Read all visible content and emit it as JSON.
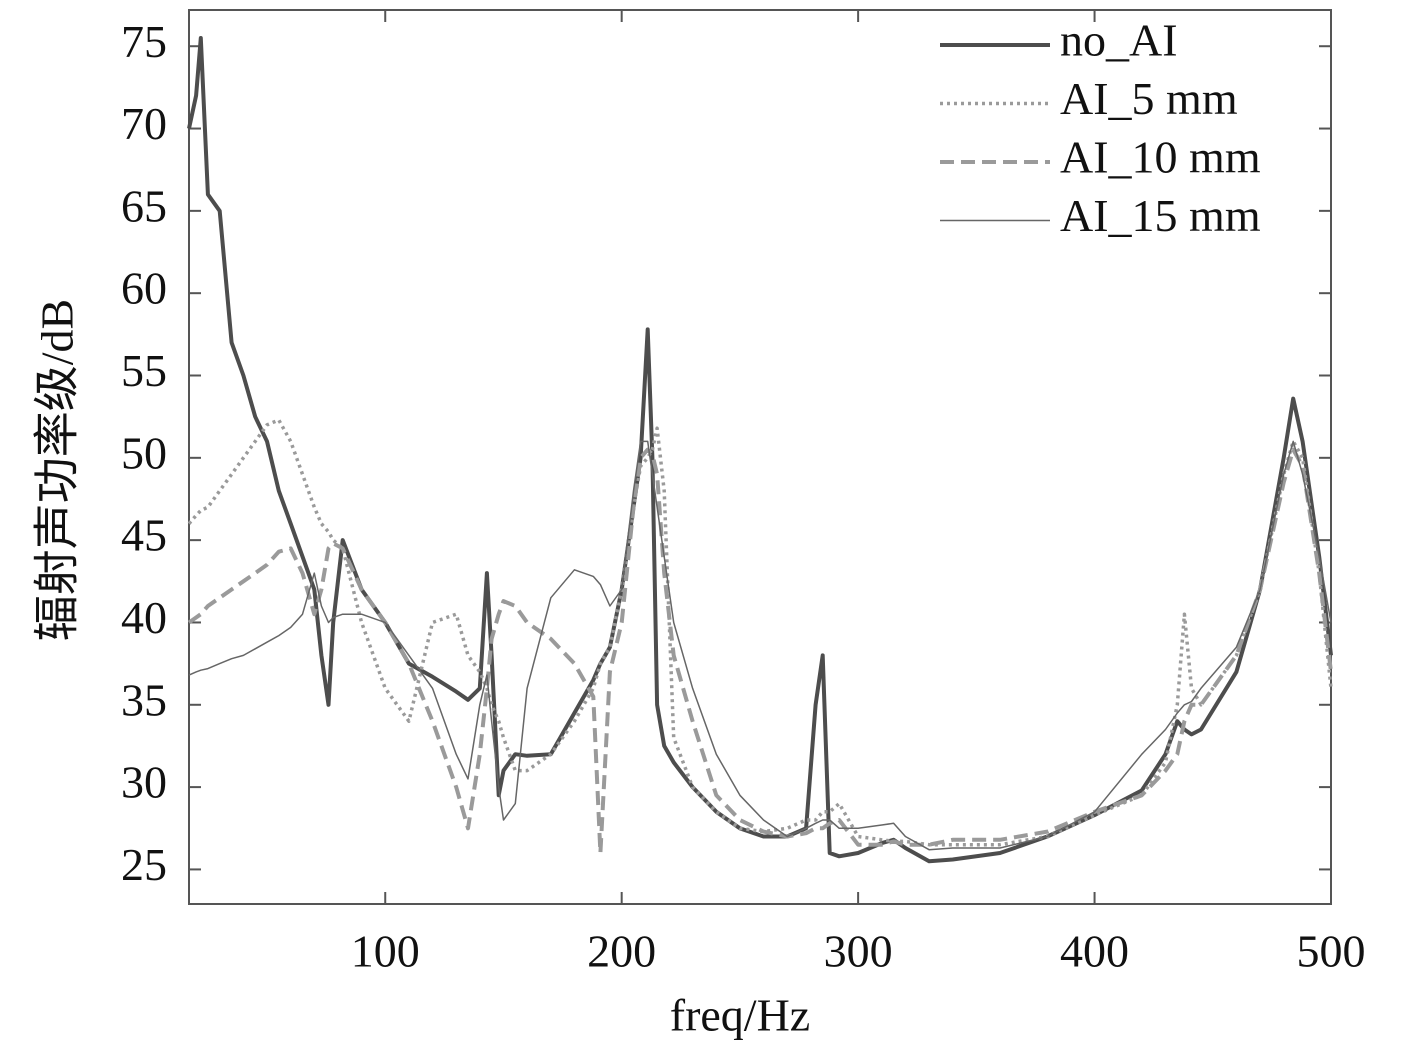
{
  "chart_data": {
    "type": "line",
    "xlabel": "freq/Hz",
    "ylabel": "辐射声功率级/dB",
    "xlim": [
      17,
      500
    ],
    "ylim": [
      22.9,
      77.2
    ],
    "xticks": [
      100,
      200,
      300,
      400,
      500
    ],
    "yticks": [
      25,
      30,
      35,
      40,
      45,
      50,
      55,
      60,
      65,
      70,
      75
    ],
    "legend": "upper right",
    "x": [
      17,
      20,
      22,
      25,
      30,
      35,
      40,
      45,
      50,
      55,
      60,
      65,
      70,
      73,
      76,
      78,
      82,
      90,
      100,
      110,
      120,
      130,
      135,
      140,
      143,
      145,
      148,
      150,
      155,
      160,
      170,
      180,
      188,
      191,
      195,
      200,
      205,
      208,
      211,
      213,
      215,
      218,
      222,
      230,
      240,
      250,
      260,
      270,
      278,
      282,
      285,
      288,
      292,
      300,
      310,
      315,
      320,
      330,
      340,
      360,
      380,
      400,
      420,
      430,
      435,
      438,
      441,
      445,
      460,
      470,
      480,
      484,
      488,
      495,
      500
    ],
    "series": [
      {
        "name": "no_AI",
        "color": "#4d4d4d",
        "width": 4,
        "line_style": "solid",
        "values": [
          70,
          72,
          75.5,
          66,
          65,
          57,
          55,
          52.5,
          51,
          48,
          46,
          44,
          42,
          38,
          35,
          40,
          45,
          42,
          40,
          37.5,
          36.7,
          35.8,
          35.3,
          36,
          43,
          38,
          29.5,
          31,
          32,
          31.9,
          32,
          34.5,
          36.5,
          37.5,
          38.5,
          42,
          47,
          50,
          57.8,
          50,
          35,
          32.5,
          31.5,
          30,
          28.5,
          27.5,
          27,
          27,
          27.5,
          35,
          38,
          26,
          25.8,
          26,
          26.6,
          26.8,
          26.3,
          25.5,
          25.6,
          26,
          27,
          28.3,
          29.8,
          32,
          34,
          33.5,
          33.2,
          33.5,
          37,
          42,
          50,
          53.6,
          51,
          44,
          38
        ]
      },
      {
        "name": "AI_5 mm",
        "color": "#9a9a9a",
        "width": 3.5,
        "line_style": "dotted",
        "values": [
          46,
          46.5,
          46.8,
          47,
          48,
          49,
          50,
          51,
          52,
          52.3,
          51,
          49,
          47,
          46,
          45.5,
          45,
          44.5,
          40,
          36,
          34,
          40,
          40.5,
          38,
          37,
          36,
          35,
          34,
          33,
          31,
          31,
          32,
          34,
          36,
          37.5,
          38.5,
          42,
          47,
          49.5,
          50,
          50.5,
          51.8,
          48,
          33,
          30,
          28.5,
          27.5,
          27.3,
          27.5,
          28,
          28,
          28.5,
          28.5,
          29,
          27,
          26.8,
          26.7,
          26.7,
          26.5,
          26.5,
          26.5,
          27,
          28.3,
          29.5,
          31.5,
          35,
          40.5,
          36,
          35,
          38,
          42,
          49,
          51,
          50,
          43,
          36
        ]
      },
      {
        "name": "AI_10 mm",
        "color": "#9a9a9a",
        "width": 4,
        "line_style": "dashed",
        "values": [
          40,
          40.3,
          40.5,
          41,
          41.5,
          42,
          42.5,
          43,
          43.5,
          44.3,
          44.5,
          43,
          40.5,
          42,
          44.5,
          44.8,
          44.5,
          42,
          40,
          37.5,
          34,
          30,
          27.5,
          32,
          36,
          39,
          40.5,
          41.3,
          41,
          40,
          39,
          37.5,
          35.5,
          26,
          37,
          40,
          47,
          50,
          50.5,
          50.2,
          49,
          43,
          38,
          34,
          29.5,
          28,
          27.3,
          27,
          27.2,
          27.5,
          27.5,
          27.8,
          28,
          26.5,
          26.5,
          26.7,
          26.5,
          26.5,
          26.8,
          26.8,
          27.3,
          28.5,
          29.5,
          31,
          32,
          34,
          35,
          35,
          38,
          42,
          48.5,
          50.5,
          49.5,
          43,
          37
        ]
      },
      {
        "name": "AI_15 mm",
        "color": "#666666",
        "width": 1.5,
        "line_style": "solid",
        "values": [
          36.8,
          37,
          37.1,
          37.2,
          37.5,
          37.8,
          38,
          38.4,
          38.8,
          39.2,
          39.7,
          40.5,
          43,
          41,
          40,
          40.3,
          40.5,
          40.5,
          40,
          38,
          36,
          32,
          30.5,
          35,
          36.8,
          34,
          30,
          28,
          29,
          36,
          41.5,
          43.2,
          42.8,
          42.3,
          41,
          42,
          48,
          51,
          51,
          49,
          47,
          44,
          40,
          36,
          32,
          29.5,
          28,
          27,
          27.5,
          27.8,
          28,
          28,
          27.5,
          27.5,
          27.7,
          27.8,
          27,
          26.2,
          26.3,
          26.3,
          27,
          28.5,
          32,
          33.5,
          34.5,
          35,
          35.2,
          36,
          38.5,
          42,
          49,
          51,
          49,
          44,
          40
        ]
      }
    ]
  }
}
